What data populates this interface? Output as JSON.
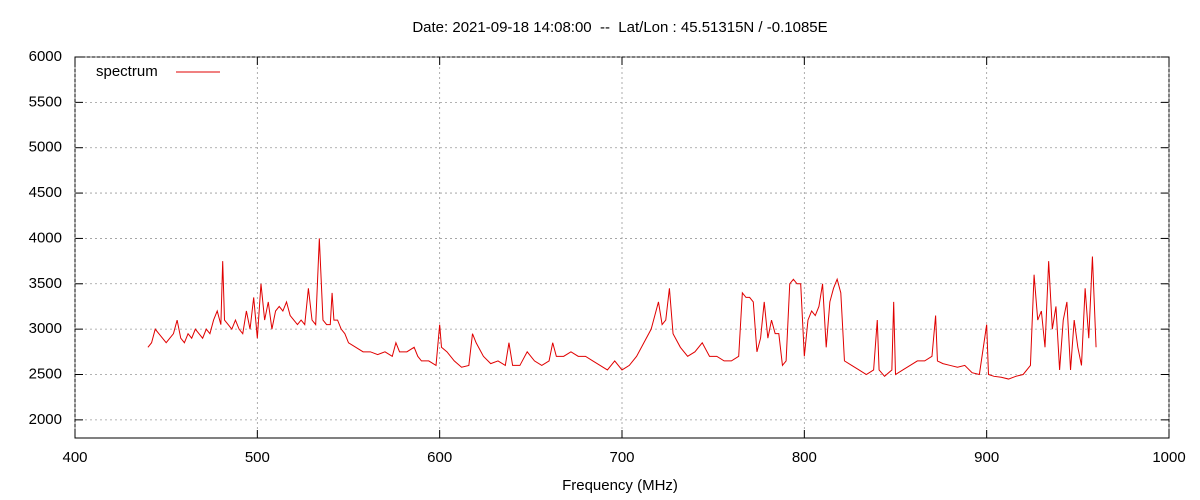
{
  "chart_data": {
    "type": "line",
    "title": "Date: 2021-09-18 14:08:00  --  Lat/Lon : 45.51315N / -0.1085E",
    "x_label": "Frequency (MHz)",
    "xlim": [
      400,
      1000
    ],
    "xticks": [
      400,
      500,
      600,
      700,
      800,
      900,
      1000
    ],
    "ylim": [
      1800,
      6000
    ],
    "yticks": [
      2000,
      2500,
      3000,
      3500,
      4000,
      4500,
      5000,
      5500,
      6000
    ],
    "grid": true,
    "legend": "top-left",
    "series": [
      {
        "name": "spectrum",
        "color": "#e00000",
        "x": [
          440,
          442,
          444,
          446,
          448,
          450,
          452,
          454,
          456,
          458,
          460,
          462,
          464,
          466,
          468,
          470,
          472,
          474,
          476,
          478,
          480,
          481,
          482,
          484,
          486,
          488,
          490,
          492,
          494,
          496,
          498,
          500,
          502,
          504,
          506,
          508,
          510,
          512,
          514,
          516,
          518,
          520,
          522,
          524,
          526,
          528,
          530,
          532,
          534,
          536,
          538,
          540,
          541,
          542,
          544,
          546,
          548,
          550,
          554,
          558,
          562,
          566,
          570,
          574,
          576,
          578,
          582,
          586,
          588,
          590,
          594,
          598,
          600,
          601,
          604,
          608,
          612,
          616,
          618,
          620,
          624,
          628,
          632,
          636,
          638,
          640,
          644,
          648,
          652,
          656,
          660,
          662,
          664,
          668,
          672,
          676,
          680,
          684,
          688,
          692,
          696,
          700,
          704,
          708,
          712,
          716,
          718,
          720,
          722,
          724,
          726,
          728,
          732,
          736,
          740,
          744,
          748,
          752,
          756,
          760,
          764,
          766,
          768,
          770,
          772,
          774,
          776,
          778,
          780,
          782,
          784,
          786,
          788,
          790,
          792,
          794,
          796,
          798,
          800,
          802,
          804,
          806,
          808,
          810,
          812,
          814,
          816,
          818,
          820,
          822,
          826,
          830,
          834,
          838,
          840,
          841,
          844,
          848,
          849,
          850,
          854,
          858,
          862,
          866,
          870,
          872,
          873,
          876,
          880,
          884,
          888,
          892,
          896,
          900,
          901,
          904,
          908,
          912,
          916,
          920,
          924,
          926,
          928,
          930,
          932,
          934,
          936,
          938,
          940,
          942,
          944,
          946,
          948,
          950,
          952,
          954,
          956,
          958,
          960
        ],
        "values": [
          2800,
          2850,
          3000,
          2950,
          2900,
          2850,
          2900,
          2950,
          3100,
          2900,
          2850,
          2950,
          2900,
          3000,
          2950,
          2900,
          3000,
          2950,
          3100,
          3200,
          3050,
          3750,
          3100,
          3050,
          3000,
          3100,
          3000,
          2950,
          3200,
          3000,
          3350,
          2900,
          3500,
          3100,
          3300,
          3000,
          3200,
          3250,
          3200,
          3300,
          3150,
          3100,
          3050,
          3100,
          3050,
          3450,
          3100,
          3050,
          4000,
          3100,
          3050,
          3050,
          3400,
          3100,
          3100,
          3000,
          2950,
          2850,
          2800,
          2750,
          2750,
          2720,
          2750,
          2700,
          2850,
          2750,
          2750,
          2800,
          2700,
          2650,
          2650,
          2600,
          3050,
          2800,
          2750,
          2650,
          2580,
          2600,
          2950,
          2850,
          2700,
          2620,
          2650,
          2600,
          2850,
          2600,
          2600,
          2750,
          2650,
          2600,
          2650,
          2850,
          2700,
          2700,
          2750,
          2700,
          2700,
          2650,
          2600,
          2550,
          2650,
          2550,
          2600,
          2700,
          2850,
          3000,
          3150,
          3300,
          3050,
          3100,
          3450,
          2950,
          2800,
          2700,
          2750,
          2850,
          2700,
          2700,
          2650,
          2650,
          2700,
          3400,
          3350,
          3350,
          3300,
          2750,
          2900,
          3300,
          2900,
          3100,
          2950,
          2950,
          2600,
          2650,
          3500,
          3550,
          3500,
          3500,
          2700,
          3100,
          3200,
          3150,
          3250,
          3500,
          2800,
          3300,
          3450,
          3550,
          3400,
          2650,
          2600,
          2550,
          2500,
          2550,
          3100,
          2550,
          2480,
          2550,
          3300,
          2500,
          2550,
          2600,
          2650,
          2650,
          2700,
          3150,
          2650,
          2620,
          2600,
          2580,
          2600,
          2520,
          2500,
          3050,
          2500,
          2480,
          2470,
          2450,
          2480,
          2500,
          2600,
          3600,
          3100,
          3200,
          2800,
          3750,
          3000,
          3250,
          2550,
          3100,
          3300,
          2550,
          3100,
          2800,
          2600,
          3450,
          2900,
          3800,
          2800
        ]
      }
    ]
  }
}
